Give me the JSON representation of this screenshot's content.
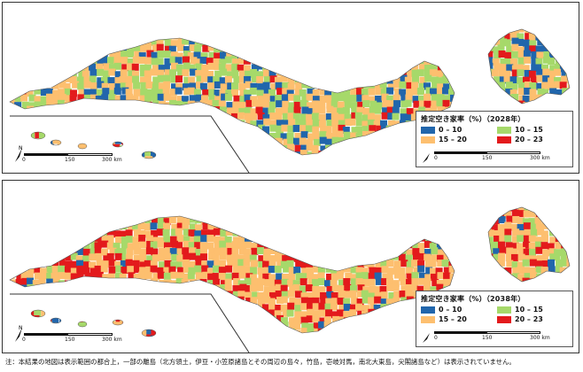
{
  "colors": {
    "c0_10": "#2166ac",
    "c10_15": "#a6d96a",
    "c15_20": "#fdbf6f",
    "c20_23": "#e31a1c",
    "border": "#555555"
  },
  "panels": [
    {
      "id": "2028",
      "legend_title": "推定空き家率（%）（2028年）",
      "scale_label_mid": "150",
      "scale_label_end": "300 km",
      "scale_label_start": "0",
      "inset_scale_label_start": "0",
      "inset_scale_label_mid": "150",
      "inset_scale_label_end": "300 km"
    },
    {
      "id": "2038",
      "legend_title": "推定空き家率（%）（2038年）",
      "scale_label_mid": "150",
      "scale_label_end": "300 km",
      "scale_label_start": "0",
      "inset_scale_label_start": "0",
      "inset_scale_label_mid": "150",
      "inset_scale_label_end": "300 km"
    }
  ],
  "legend_classes": [
    {
      "label": "0 – 10",
      "color_key": "c0_10"
    },
    {
      "label": "10 – 15",
      "color_key": "c10_15"
    },
    {
      "label": "15 – 20",
      "color_key": "c15_20"
    },
    {
      "label": "20 – 23",
      "color_key": "c20_23"
    }
  ],
  "footnote": "注：本結果の地図は表示範囲の都合上，一部の離島（北方領土，伊豆・小笠原諸島とその周辺の島々，竹島，壱岐対馬，南北大東島，尖閣諸島など）は表示されていません。"
}
